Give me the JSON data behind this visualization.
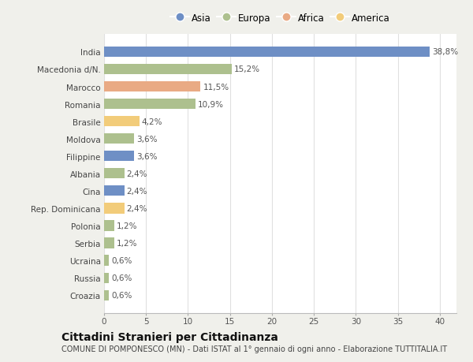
{
  "categories": [
    "India",
    "Macedonia d/N.",
    "Marocco",
    "Romania",
    "Brasile",
    "Moldova",
    "Filippine",
    "Albania",
    "Cina",
    "Rep. Dominicana",
    "Polonia",
    "Serbia",
    "Ucraina",
    "Russia",
    "Croazia"
  ],
  "values": [
    38.8,
    15.2,
    11.5,
    10.9,
    4.2,
    3.6,
    3.6,
    2.4,
    2.4,
    2.4,
    1.2,
    1.2,
    0.6,
    0.6,
    0.6
  ],
  "labels": [
    "38,8%",
    "15,2%",
    "11,5%",
    "10,9%",
    "4,2%",
    "3,6%",
    "3,6%",
    "2,4%",
    "2,4%",
    "2,4%",
    "1,2%",
    "1,2%",
    "0,6%",
    "0,6%",
    "0,6%"
  ],
  "colors": [
    "#6e8fc5",
    "#adc08e",
    "#e9aa84",
    "#adc08e",
    "#f2cc7a",
    "#adc08e",
    "#6e8fc5",
    "#adc08e",
    "#6e8fc5",
    "#f2cc7a",
    "#adc08e",
    "#adc08e",
    "#adc08e",
    "#adc08e",
    "#adc08e"
  ],
  "legend": [
    {
      "label": "Asia",
      "color": "#6e8fc5"
    },
    {
      "label": "Europa",
      "color": "#adc08e"
    },
    {
      "label": "Africa",
      "color": "#e9aa84"
    },
    {
      "label": "America",
      "color": "#f2cc7a"
    }
  ],
  "xlim": [
    0,
    42
  ],
  "xticks": [
    0,
    5,
    10,
    15,
    20,
    25,
    30,
    35,
    40
  ],
  "title": "Cittadini Stranieri per Cittadinanza",
  "subtitle": "COMUNE DI POMPONESCO (MN) - Dati ISTAT al 1° gennaio di ogni anno - Elaborazione TUTTITALIA.IT",
  "bg_color": "#f0f0eb",
  "plot_bg_color": "#ffffff",
  "grid_color": "#e0e0e0",
  "bar_height": 0.6,
  "title_fontsize": 10,
  "subtitle_fontsize": 7,
  "label_fontsize": 7.5,
  "tick_fontsize": 7.5,
  "value_fontsize": 7.5
}
